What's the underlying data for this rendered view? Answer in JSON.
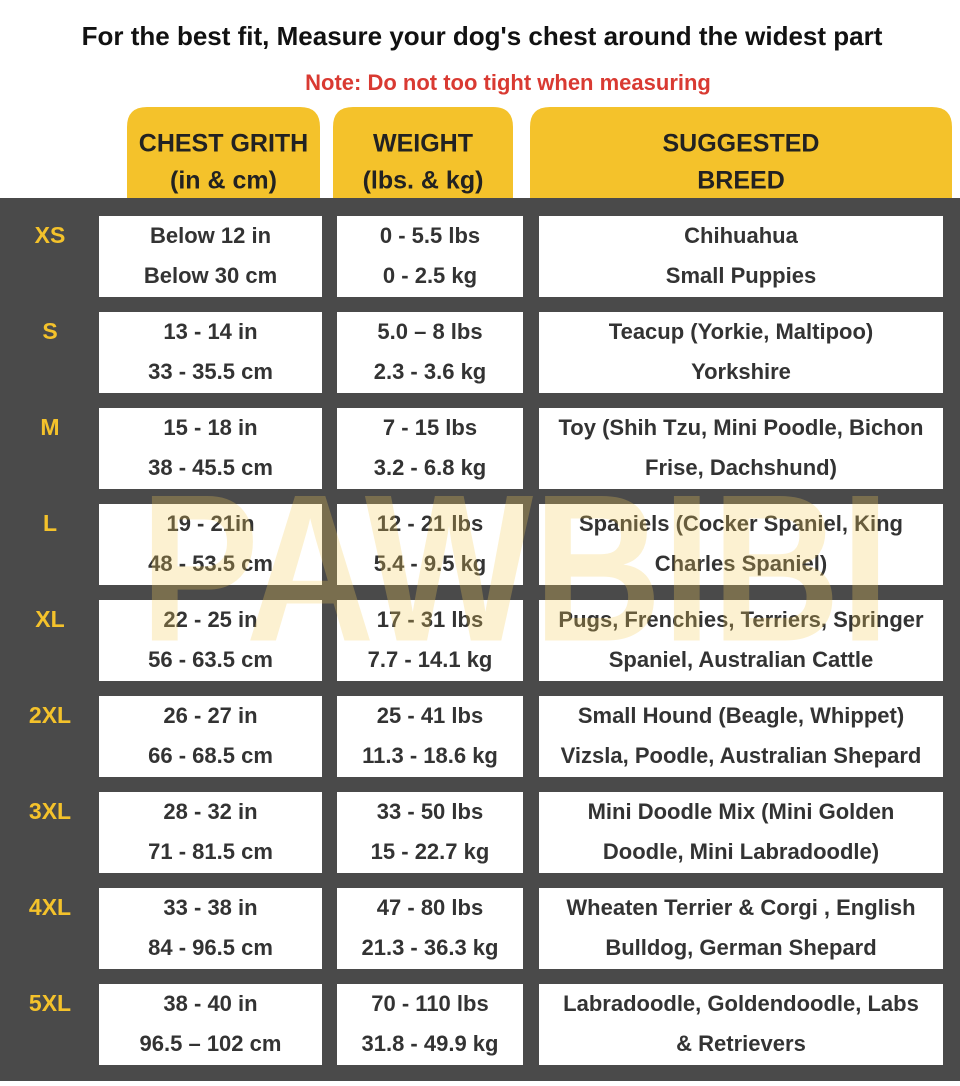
{
  "header": {
    "title": "For the best fit, Measure your dog's chest around the widest part",
    "note": "Note: Do not too tight when measuring"
  },
  "watermark": "PAWBIBI",
  "table": {
    "columns": [
      [
        "CHEST GRITH",
        "(in & cm)"
      ],
      [
        "WEIGHT",
        "(lbs. & kg)"
      ],
      [
        "SUGGESTED",
        "BREED"
      ]
    ],
    "rows": [
      {
        "size": "XS",
        "cells": [
          [
            "Below 12 in",
            "Below 30 cm"
          ],
          [
            "0 - 5.5 lbs",
            "0 - 2.5 kg"
          ],
          [
            "Chihuahua",
            "Small Puppies"
          ]
        ]
      },
      {
        "size": "S",
        "cells": [
          [
            "13 - 14 in",
            "33 - 35.5 cm"
          ],
          [
            "5.0 – 8 lbs",
            "2.3 - 3.6 kg"
          ],
          [
            "Teacup (Yorkie, Maltipoo)",
            "Yorkshire"
          ]
        ]
      },
      {
        "size": "M",
        "cells": [
          [
            "15 - 18 in",
            "38 - 45.5 cm"
          ],
          [
            "7 - 15 lbs",
            "3.2 - 6.8 kg"
          ],
          [
            "Toy (Shih Tzu, Mini Poodle, Bichon",
            "Frise, Dachshund)"
          ]
        ]
      },
      {
        "size": "L",
        "cells": [
          [
            "19 - 21in",
            "48 - 53.5 cm"
          ],
          [
            "12 - 21 lbs",
            "5.4 - 9.5 kg"
          ],
          [
            "Spaniels (Cocker Spaniel, King",
            "Charles Spaniel)"
          ]
        ]
      },
      {
        "size": "XL",
        "cells": [
          [
            "22 - 25 in",
            "56 - 63.5 cm"
          ],
          [
            "17 - 31 lbs",
            "7.7 - 14.1 kg"
          ],
          [
            "Pugs, Frenchies, Terriers, Springer",
            "Spaniel, Australian Cattle"
          ]
        ]
      },
      {
        "size": "2XL",
        "cells": [
          [
            "26 - 27 in",
            "66 - 68.5 cm"
          ],
          [
            "25 - 41 lbs",
            "11.3 - 18.6 kg"
          ],
          [
            "Small Hound (Beagle, Whippet)",
            "Vizsla, Poodle, Australian Shepard"
          ]
        ]
      },
      {
        "size": "3XL",
        "cells": [
          [
            "28 - 32 in",
            "71 - 81.5 cm"
          ],
          [
            "33 - 50 lbs",
            "15 - 22.7 kg"
          ],
          [
            "Mini Doodle Mix (Mini Golden",
            "Doodle, Mini Labradoodle)"
          ]
        ]
      },
      {
        "size": "4XL",
        "cells": [
          [
            "33 - 38 in",
            "84 - 96.5 cm"
          ],
          [
            "47 - 80 lbs",
            "21.3 - 36.3 kg"
          ],
          [
            "Wheaten Terrier & Corgi ,   English",
            "Bulldog, German Shepard"
          ]
        ]
      },
      {
        "size": "5XL",
        "cells": [
          [
            "38 - 40 in",
            "96.5 – 102 cm"
          ],
          [
            "70 - 110 lbs",
            "31.8 - 49.9 kg"
          ],
          [
            "Labradoodle, Goldendoodle, Labs",
            "& Retrievers"
          ]
        ]
      }
    ]
  }
}
